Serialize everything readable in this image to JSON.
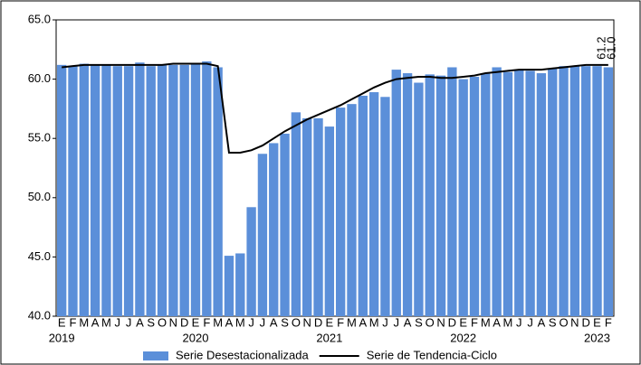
{
  "chart_data": {
    "type": "bar-line",
    "categories": [
      "E",
      "F",
      "M",
      "A",
      "M",
      "J",
      "J",
      "A",
      "S",
      "O",
      "N",
      "D",
      "E",
      "F",
      "M",
      "A",
      "M",
      "J",
      "J",
      "A",
      "S",
      "O",
      "N",
      "D",
      "E",
      "F",
      "M",
      "A",
      "M",
      "J",
      "J",
      "A",
      "S",
      "O",
      "N",
      "D",
      "E",
      "F",
      "M",
      "A",
      "M",
      "J",
      "J",
      "A",
      "S",
      "O",
      "N",
      "D",
      "E",
      "F"
    ],
    "years": [
      "2019",
      "2020",
      "2021",
      "2022",
      "2023"
    ],
    "series": [
      {
        "name": "Serie Desestacionalizada",
        "kind": "bar",
        "color": "#5b8fd9",
        "values": [
          61.2,
          61.1,
          61.3,
          61.2,
          61.2,
          61.1,
          61.1,
          61.4,
          61.1,
          61.2,
          61.2,
          61.2,
          61.3,
          61.5,
          61.0,
          45.1,
          45.3,
          49.2,
          53.7,
          54.6,
          55.4,
          57.2,
          56.7,
          56.7,
          56.0,
          57.6,
          57.9,
          58.6,
          58.9,
          58.5,
          60.8,
          60.5,
          59.7,
          60.4,
          60.3,
          61.0,
          60.0,
          60.2,
          60.5,
          61.0,
          60.6,
          60.8,
          60.7,
          60.5,
          60.9,
          61.1,
          61.1,
          61.1,
          61.1,
          61.0
        ],
        "value_labels": [
          null,
          null,
          null,
          null,
          null,
          null,
          null,
          null,
          null,
          null,
          null,
          null,
          null,
          null,
          null,
          null,
          null,
          null,
          null,
          null,
          null,
          null,
          null,
          null,
          null,
          null,
          null,
          null,
          null,
          null,
          null,
          null,
          null,
          null,
          null,
          null,
          null,
          null,
          null,
          null,
          null,
          null,
          null,
          null,
          null,
          null,
          null,
          null,
          null,
          "61.0"
        ]
      },
      {
        "name": "Serie de Tendencia-Ciclo",
        "kind": "line",
        "color": "#000000",
        "values": [
          61.0,
          61.1,
          61.2,
          61.2,
          61.2,
          61.2,
          61.2,
          61.2,
          61.2,
          61.2,
          61.3,
          61.3,
          61.3,
          61.3,
          61.1,
          53.8,
          53.8,
          54.0,
          54.4,
          55.0,
          55.6,
          56.1,
          56.6,
          57.0,
          57.4,
          57.8,
          58.3,
          58.8,
          59.3,
          59.7,
          60.0,
          60.1,
          60.2,
          60.2,
          60.1,
          60.1,
          60.2,
          60.3,
          60.5,
          60.6,
          60.7,
          60.8,
          60.8,
          60.8,
          60.9,
          61.0,
          61.1,
          61.2,
          61.2,
          61.2
        ],
        "value_labels": [
          null,
          null,
          null,
          null,
          null,
          null,
          null,
          null,
          null,
          null,
          null,
          null,
          null,
          null,
          null,
          null,
          null,
          null,
          null,
          null,
          null,
          null,
          null,
          null,
          null,
          null,
          null,
          null,
          null,
          null,
          null,
          null,
          null,
          null,
          null,
          null,
          null,
          null,
          null,
          null,
          null,
          null,
          null,
          null,
          null,
          null,
          null,
          null,
          null,
          "61.2"
        ]
      }
    ],
    "ylim": [
      40,
      65
    ],
    "yticks": [
      {
        "value": 40,
        "label": "40.0"
      },
      {
        "value": 45,
        "label": "45.0"
      },
      {
        "value": 50,
        "label": "50.0"
      },
      {
        "value": 55,
        "label": "55.0"
      },
      {
        "value": 60,
        "label": "60.0"
      },
      {
        "value": 65,
        "label": "65.0"
      }
    ],
    "grid": false
  }
}
